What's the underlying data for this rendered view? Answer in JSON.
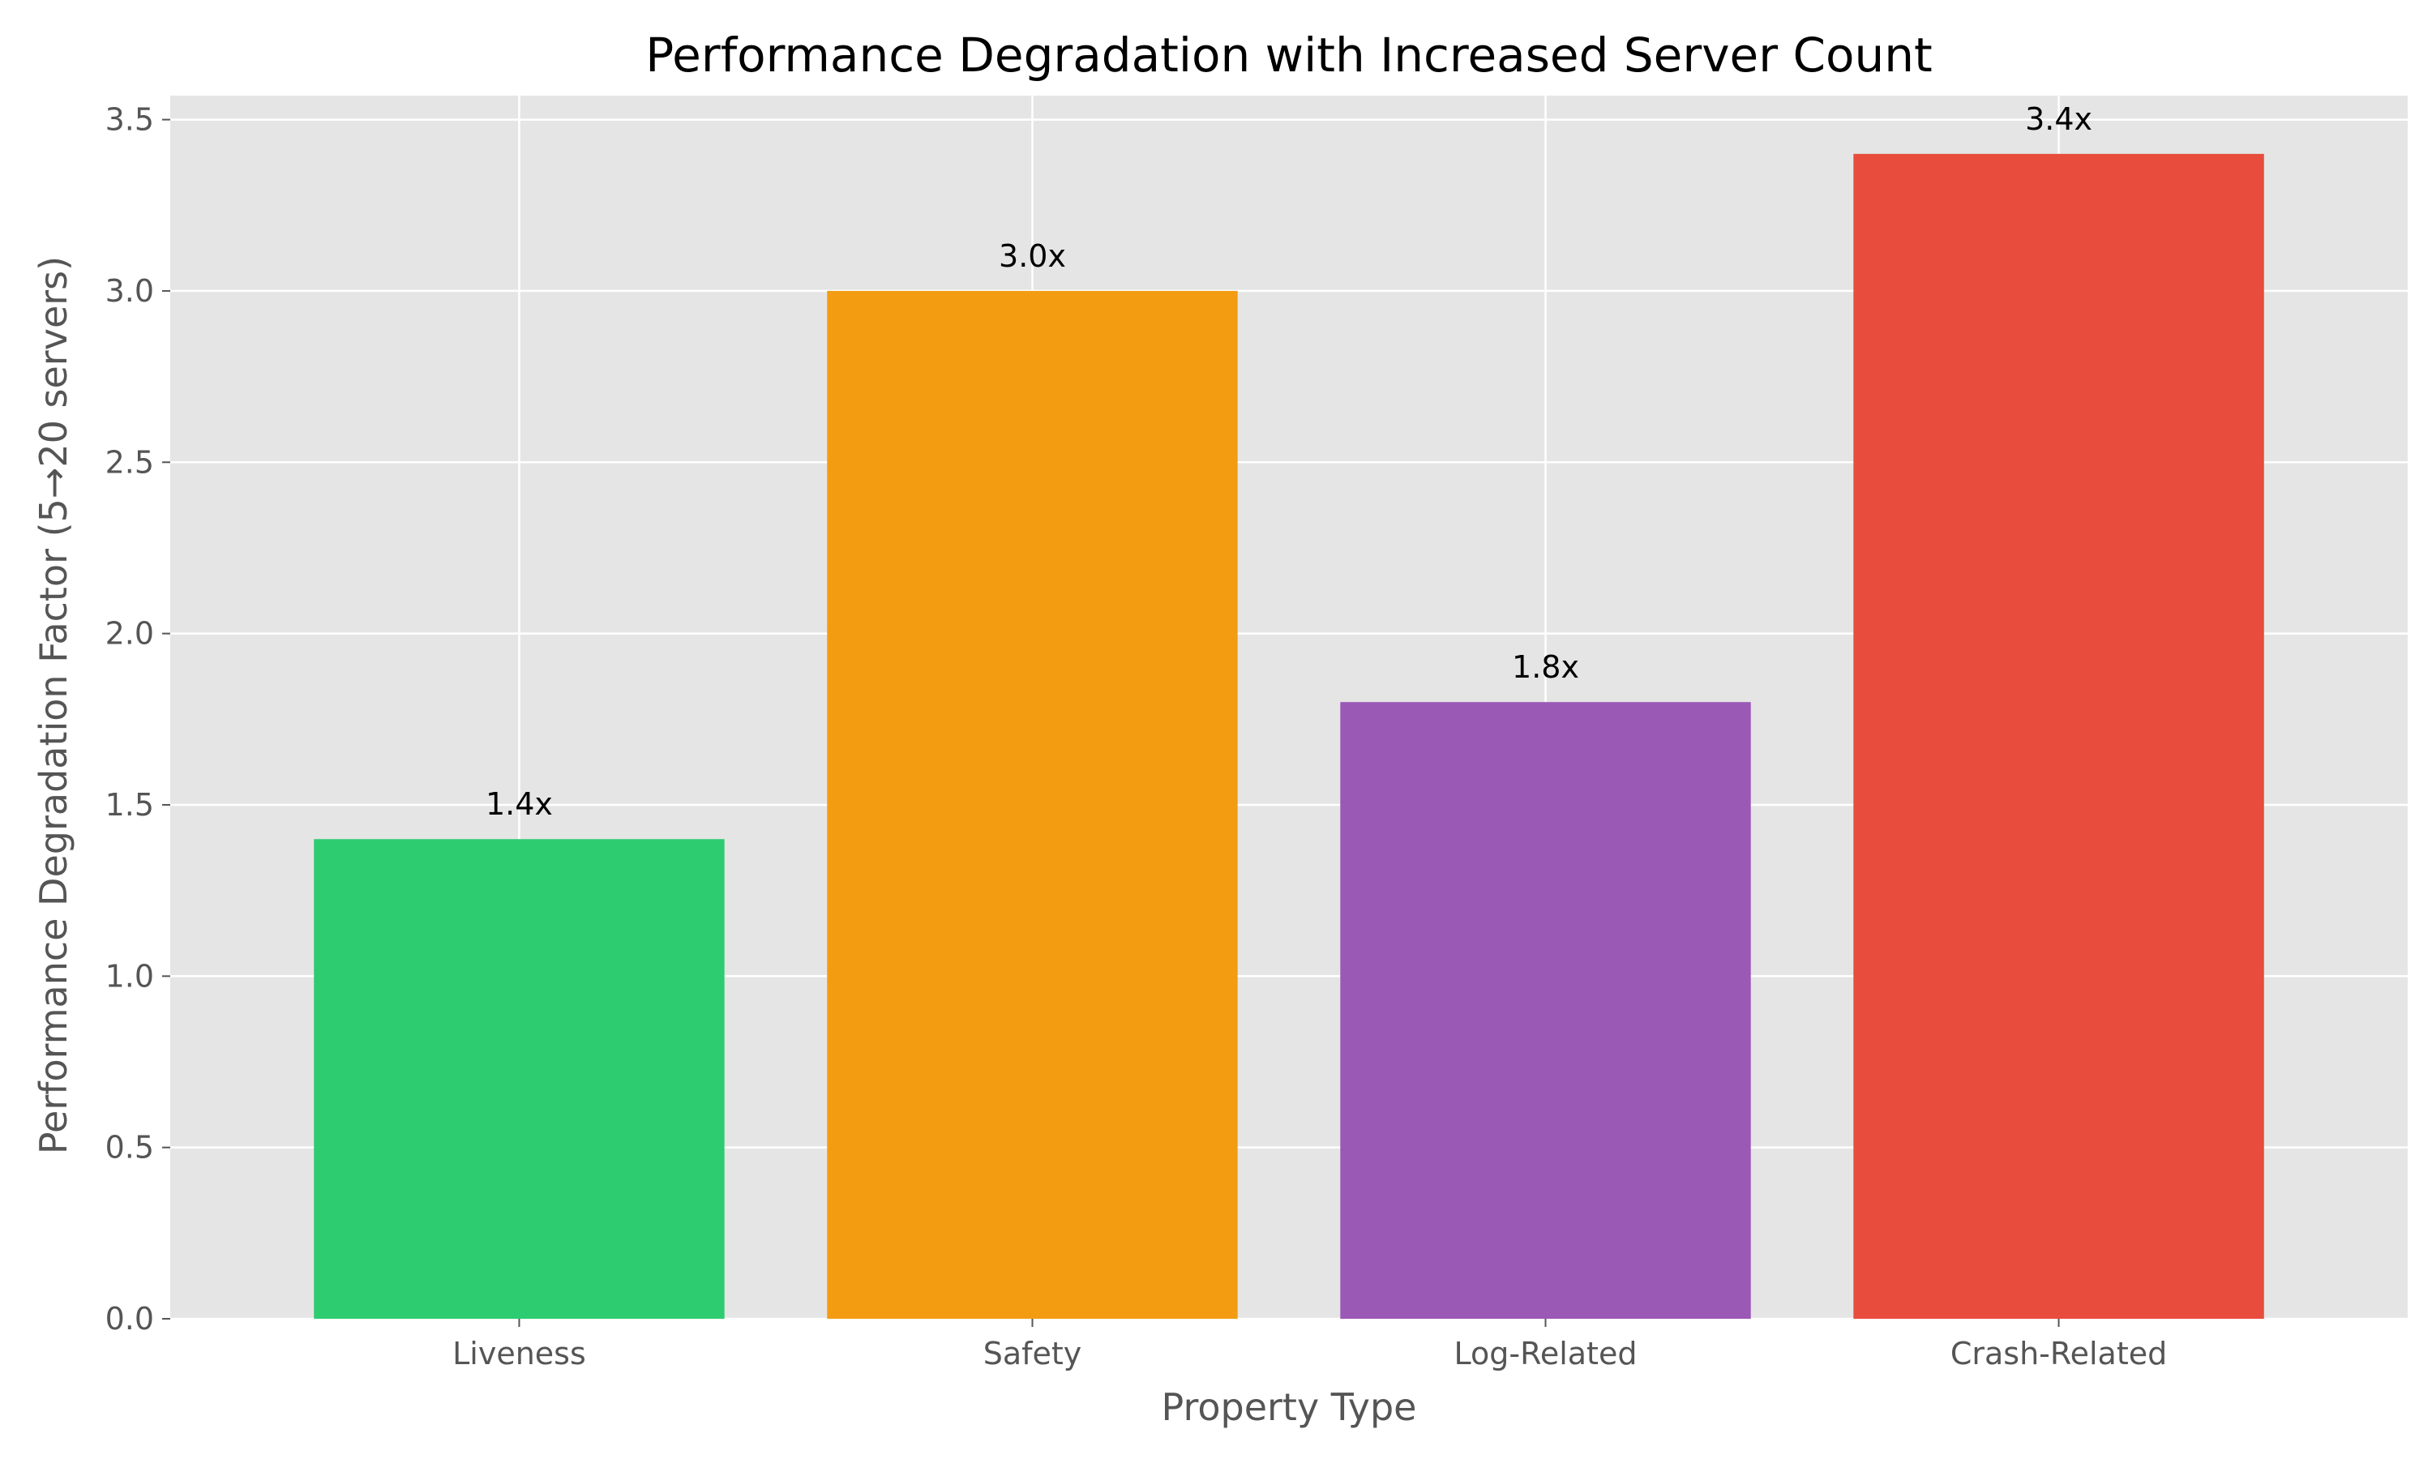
{
  "chart_data": {
    "type": "bar",
    "title": "Performance Degradation with Increased Server Count",
    "xlabel": "Property Type",
    "ylabel": "Performance Degradation Factor (5→20 servers)",
    "categories": [
      "Liveness",
      "Safety",
      "Log-Related",
      "Crash-Related"
    ],
    "values": [
      1.4,
      3.0,
      1.8,
      3.4
    ],
    "data_labels": [
      "1.4x",
      "3.0x",
      "1.8x",
      "3.4x"
    ],
    "colors": [
      "#2ecc71",
      "#f39c12",
      "#9b59b6",
      "#e74c3c"
    ],
    "ylim": [
      0,
      3.57
    ],
    "yticks": [
      0.0,
      0.5,
      1.0,
      1.5,
      2.0,
      2.5,
      3.0,
      3.5
    ],
    "ytick_labels": [
      "0.0",
      "0.5",
      "1.0",
      "1.5",
      "2.0",
      "2.5",
      "3.0",
      "3.5"
    ],
    "grid": true,
    "background": "#e5e5e5",
    "gridline_color": "#ffffff",
    "legend": "none"
  }
}
